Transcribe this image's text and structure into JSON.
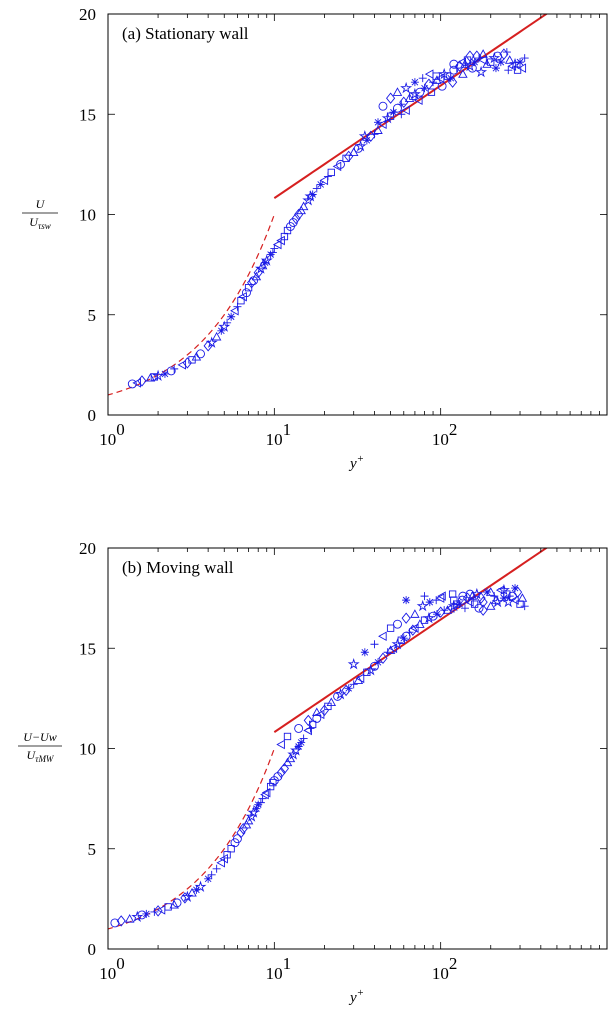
{
  "chart_data": [
    {
      "type": "scatter",
      "title": "(a) Stationary wall",
      "xlabel": "y",
      "xlabel_sup": "+",
      "ylabel_num": "U",
      "ylabel_den_base": "U",
      "ylabel_den_sub": "τsw",
      "x_scale": "log",
      "xlim": [
        1,
        1000
      ],
      "ylim": [
        0,
        20
      ],
      "x_ticks": [
        {
          "base": "10",
          "exp": "0"
        },
        {
          "base": "10",
          "exp": "1"
        },
        {
          "base": "10",
          "exp": "2"
        }
      ],
      "y_ticks": [
        "0",
        "5",
        "10",
        "15",
        "20"
      ],
      "grid": false,
      "legend": "none",
      "reference_lines": [
        {
          "kind": "viscous-sublayer",
          "relation": "U+ = y+",
          "style": "dashed",
          "color": "#d62020",
          "x": [
            0.5,
            10
          ]
        },
        {
          "kind": "log-law",
          "relation": "U+ = (1/0.41) ln y+ + 5.2",
          "style": "solid",
          "color": "#d62020",
          "x": [
            10,
            1000
          ]
        }
      ],
      "series_color": "#1a1ae6",
      "markers": [
        "circle",
        "diamond",
        "triangle",
        "star",
        "asterisk",
        "plus",
        "triangle-left",
        "square"
      ],
      "points": [
        [
          1.4,
          1.55
        ],
        [
          1.6,
          1.7
        ],
        [
          1.8,
          1.85
        ],
        [
          2.0,
          1.95
        ],
        [
          2.2,
          2.05
        ],
        [
          2.5,
          2.3
        ],
        [
          2.8,
          2.5
        ],
        [
          3.2,
          2.75
        ],
        [
          3.6,
          3.05
        ],
        [
          4.0,
          3.45
        ],
        [
          4.5,
          3.9
        ],
        [
          5.0,
          4.4
        ],
        [
          5.5,
          4.9
        ],
        [
          6.0,
          5.4
        ],
        [
          6.5,
          5.9
        ],
        [
          7.0,
          6.35
        ],
        [
          7.5,
          6.7
        ],
        [
          8.0,
          7.1
        ],
        [
          8.5,
          7.45
        ],
        [
          9.0,
          7.7
        ],
        [
          9.5,
          8.0
        ],
        [
          10,
          8.3
        ],
        [
          11,
          8.7
        ],
        [
          12,
          9.2
        ],
        [
          13,
          9.6
        ],
        [
          14,
          10.0
        ],
        [
          15,
          10.4
        ],
        [
          16,
          10.7
        ],
        [
          17,
          11.0
        ],
        [
          18,
          11.3
        ],
        [
          20,
          11.7
        ],
        [
          22,
          12.1
        ],
        [
          25,
          12.5
        ],
        [
          28,
          12.9
        ],
        [
          30,
          13.1
        ],
        [
          33,
          13.4
        ],
        [
          36,
          13.7
        ],
        [
          40,
          14.0
        ],
        [
          45,
          14.5
        ],
        [
          50,
          14.9
        ],
        [
          55,
          15.3
        ],
        [
          60,
          15.6
        ],
        [
          65,
          15.8
        ],
        [
          70,
          16.0
        ],
        [
          80,
          16.3
        ],
        [
          90,
          16.6
        ],
        [
          100,
          16.8
        ],
        [
          110,
          16.9
        ],
        [
          120,
          17.2
        ],
        [
          130,
          17.4
        ],
        [
          140,
          17.5
        ],
        [
          150,
          17.4
        ],
        [
          160,
          17.6
        ],
        [
          170,
          17.8
        ],
        [
          180,
          17.7
        ],
        [
          200,
          17.6
        ],
        [
          220,
          17.9
        ],
        [
          240,
          18.0
        ],
        [
          260,
          17.7
        ],
        [
          280,
          17.5
        ],
        [
          300,
          17.6
        ],
        [
          320,
          17.8
        ],
        [
          1.5,
          1.6
        ],
        [
          1.9,
          1.9
        ],
        [
          2.4,
          2.2
        ],
        [
          3.0,
          2.6
        ],
        [
          3.4,
          2.9
        ],
        [
          4.2,
          3.6
        ],
        [
          4.8,
          4.2
        ],
        [
          5.2,
          4.6
        ],
        [
          5.8,
          5.2
        ],
        [
          6.3,
          5.7
        ],
        [
          6.8,
          6.1
        ],
        [
          7.3,
          6.6
        ],
        [
          7.8,
          6.9
        ],
        [
          8.3,
          7.3
        ],
        [
          8.8,
          7.6
        ],
        [
          9.8,
          8.1
        ],
        [
          10.5,
          8.5
        ],
        [
          11.5,
          8.9
        ],
        [
          12.5,
          9.4
        ],
        [
          13.5,
          9.8
        ],
        [
          14.5,
          10.2
        ],
        [
          16.5,
          10.9
        ],
        [
          19,
          11.5
        ],
        [
          21,
          11.9
        ],
        [
          24,
          12.4
        ],
        [
          27,
          12.8
        ],
        [
          32,
          13.3
        ],
        [
          38,
          13.9
        ],
        [
          42,
          14.2
        ],
        [
          48,
          14.8
        ],
        [
          52,
          15.1
        ],
        [
          58,
          15.5
        ],
        [
          62,
          15.2
        ],
        [
          68,
          15.9
        ],
        [
          75,
          16.1
        ],
        [
          85,
          16.5
        ],
        [
          95,
          16.7
        ],
        [
          105,
          17.0
        ],
        [
          115,
          16.8
        ],
        [
          125,
          17.3
        ],
        [
          135,
          17.6
        ],
        [
          145,
          17.7
        ],
        [
          155,
          17.3
        ],
        [
          165,
          17.9
        ],
        [
          190,
          17.5
        ],
        [
          210,
          17.8
        ],
        [
          230,
          17.6
        ],
        [
          250,
          18.1
        ],
        [
          270,
          17.4
        ],
        [
          290,
          17.2
        ],
        [
          45,
          15.4
        ],
        [
          50,
          15.8
        ],
        [
          55,
          16.1
        ],
        [
          62,
          16.3
        ],
        [
          70,
          16.6
        ],
        [
          78,
          16.8
        ],
        [
          86,
          17.0
        ],
        [
          94,
          16.9
        ],
        [
          120,
          17.5
        ],
        [
          150,
          17.9
        ],
        [
          180,
          18.0
        ],
        [
          35,
          13.9
        ],
        [
          42,
          14.6
        ],
        [
          58,
          15.0
        ],
        [
          74,
          15.7
        ],
        [
          88,
          16.1
        ],
        [
          102,
          16.4
        ],
        [
          118,
          16.6
        ],
        [
          136,
          17.0
        ],
        [
          175,
          17.1
        ],
        [
          215,
          17.3
        ],
        [
          255,
          17.2
        ],
        [
          310,
          17.3
        ]
      ]
    },
    {
      "type": "scatter",
      "title": "(b) Moving wall",
      "xlabel": "y",
      "xlabel_sup": "+",
      "ylabel_num": "U−Uw",
      "ylabel_den_base": "U",
      "ylabel_den_sub": "τMW",
      "x_scale": "log",
      "xlim": [
        1,
        1000
      ],
      "ylim": [
        0,
        20
      ],
      "x_ticks": [
        {
          "base": "10",
          "exp": "0"
        },
        {
          "base": "10",
          "exp": "1"
        },
        {
          "base": "10",
          "exp": "2"
        }
      ],
      "y_ticks": [
        "0",
        "5",
        "10",
        "15",
        "20"
      ],
      "grid": false,
      "legend": "none",
      "reference_lines": [
        {
          "kind": "viscous-sublayer",
          "relation": "U+ = y+",
          "style": "dashed",
          "color": "#d62020",
          "x": [
            0.5,
            10
          ]
        },
        {
          "kind": "log-law",
          "relation": "U+ = (1/0.41) ln y+ + 5.2",
          "style": "solid",
          "color": "#d62020",
          "x": [
            10,
            1000
          ]
        }
      ],
      "series_color": "#1a1ae6",
      "markers": [
        "circle",
        "diamond",
        "triangle",
        "star",
        "asterisk",
        "plus",
        "triangle-left",
        "square"
      ],
      "points": [
        [
          1.1,
          1.3
        ],
        [
          1.2,
          1.4
        ],
        [
          1.35,
          1.5
        ],
        [
          1.5,
          1.6
        ],
        [
          1.7,
          1.75
        ],
        [
          1.9,
          1.85
        ],
        [
          2.1,
          1.95
        ],
        [
          2.3,
          2.1
        ],
        [
          2.6,
          2.3
        ],
        [
          2.9,
          2.55
        ],
        [
          3.2,
          2.8
        ],
        [
          3.6,
          3.1
        ],
        [
          4.0,
          3.5
        ],
        [
          4.5,
          4.0
        ],
        [
          5.0,
          4.5
        ],
        [
          5.5,
          5.0
        ],
        [
          6.0,
          5.5
        ],
        [
          6.5,
          6.0
        ],
        [
          7.0,
          6.4
        ],
        [
          7.5,
          6.8
        ],
        [
          8.0,
          7.2
        ],
        [
          8.5,
          7.5
        ],
        [
          9.0,
          7.8
        ],
        [
          9.5,
          8.1
        ],
        [
          10,
          8.4
        ],
        [
          11,
          8.8
        ],
        [
          12,
          9.3
        ],
        [
          13,
          9.7
        ],
        [
          14,
          10.1
        ],
        [
          15,
          10.5
        ],
        [
          16,
          10.9
        ],
        [
          17,
          11.2
        ],
        [
          18,
          11.5
        ],
        [
          20,
          11.9
        ],
        [
          22,
          12.3
        ],
        [
          25,
          12.7
        ],
        [
          28,
          13.0
        ],
        [
          30,
          13.2
        ],
        [
          33,
          13.5
        ],
        [
          36,
          13.8
        ],
        [
          40,
          14.1
        ],
        [
          45,
          14.5
        ],
        [
          50,
          14.9
        ],
        [
          55,
          15.2
        ],
        [
          60,
          15.5
        ],
        [
          65,
          15.8
        ],
        [
          70,
          16.0
        ],
        [
          80,
          16.4
        ],
        [
          90,
          16.6
        ],
        [
          100,
          16.8
        ],
        [
          110,
          16.9
        ],
        [
          120,
          17.1
        ],
        [
          130,
          17.2
        ],
        [
          140,
          17.0
        ],
        [
          150,
          17.3
        ],
        [
          160,
          17.2
        ],
        [
          170,
          17.0
        ],
        [
          180,
          16.9
        ],
        [
          200,
          17.1
        ],
        [
          220,
          17.3
        ],
        [
          240,
          17.5
        ],
        [
          260,
          17.6
        ],
        [
          280,
          17.4
        ],
        [
          300,
          17.2
        ],
        [
          1.6,
          1.7
        ],
        [
          2.0,
          1.9
        ],
        [
          2.5,
          2.2
        ],
        [
          3.0,
          2.6
        ],
        [
          3.4,
          2.95
        ],
        [
          4.2,
          3.7
        ],
        [
          4.8,
          4.3
        ],
        [
          5.2,
          4.7
        ],
        [
          5.8,
          5.3
        ],
        [
          6.3,
          5.8
        ],
        [
          6.8,
          6.2
        ],
        [
          7.3,
          6.6
        ],
        [
          7.8,
          7.0
        ],
        [
          8.3,
          7.3
        ],
        [
          8.8,
          7.7
        ],
        [
          9.8,
          8.3
        ],
        [
          10.5,
          8.6
        ],
        [
          11.5,
          9.0
        ],
        [
          12.5,
          9.5
        ],
        [
          13.5,
          9.9
        ],
        [
          14.5,
          10.3
        ],
        [
          16.5,
          11.0
        ],
        [
          19,
          11.7
        ],
        [
          21,
          12.1
        ],
        [
          24,
          12.6
        ],
        [
          27,
          12.9
        ],
        [
          32,
          13.4
        ],
        [
          38,
          13.9
        ],
        [
          42,
          14.3
        ],
        [
          48,
          14.8
        ],
        [
          52,
          15.0
        ],
        [
          58,
          15.4
        ],
        [
          62,
          15.6
        ],
        [
          68,
          15.9
        ],
        [
          75,
          16.2
        ],
        [
          85,
          16.5
        ],
        [
          95,
          16.7
        ],
        [
          105,
          16.9
        ],
        [
          115,
          17.0
        ],
        [
          125,
          17.2
        ],
        [
          135,
          17.4
        ],
        [
          145,
          17.5
        ],
        [
          155,
          17.6
        ],
        [
          165,
          17.7
        ],
        [
          190,
          17.8
        ],
        [
          210,
          17.6
        ],
        [
          230,
          17.9
        ],
        [
          250,
          17.7
        ],
        [
          270,
          17.6
        ],
        [
          290,
          17.8
        ],
        [
          310,
          17.5
        ],
        [
          30,
          14.2
        ],
        [
          35,
          14.8
        ],
        [
          40,
          15.2
        ],
        [
          45,
          15.6
        ],
        [
          50,
          16.0
        ],
        [
          55,
          16.2
        ],
        [
          62,
          16.5
        ],
        [
          70,
          16.7
        ],
        [
          78,
          17.1
        ],
        [
          86,
          17.3
        ],
        [
          94,
          17.4
        ],
        [
          102,
          17.6
        ],
        [
          118,
          17.7
        ],
        [
          136,
          17.6
        ],
        [
          175,
          17.5
        ],
        [
          215,
          17.4
        ],
        [
          255,
          17.3
        ],
        [
          62,
          17.4
        ],
        [
          80,
          17.6
        ],
        [
          100,
          17.5
        ],
        [
          120,
          17.4
        ],
        [
          150,
          17.7
        ],
        [
          180,
          17.3
        ],
        [
          200,
          17.8
        ],
        [
          240,
          17.9
        ],
        [
          280,
          18.0
        ],
        [
          320,
          17.1
        ],
        [
          11,
          10.2
        ],
        [
          12,
          10.6
        ],
        [
          14,
          11.0
        ],
        [
          16,
          11.4
        ],
        [
          18,
          11.8
        ]
      ]
    }
  ]
}
